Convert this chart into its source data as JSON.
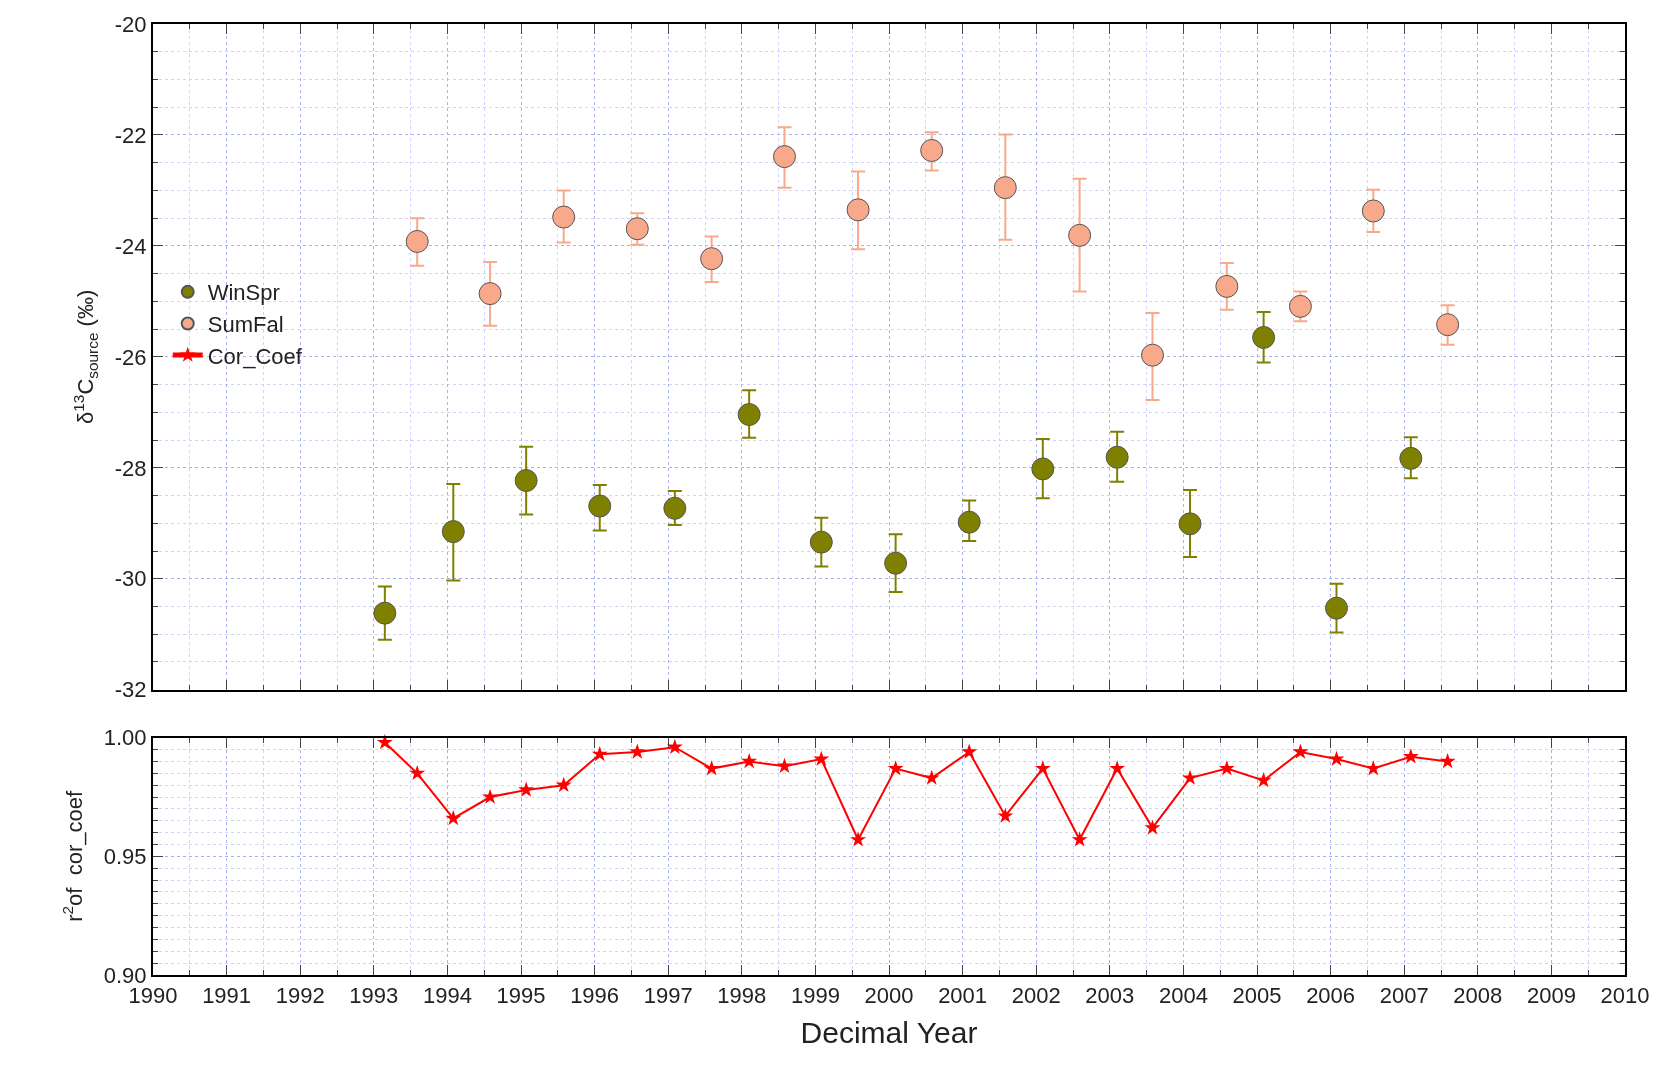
{
  "chart_data": [
    {
      "type": "scatter",
      "ylabel": "δ$^{13}$C$_{source}$ (‰)",
      "xlim": [
        1990,
        2010
      ],
      "ylim": [
        -32,
        -20
      ],
      "yticks": [
        -32,
        -30,
        -28,
        -26,
        -24,
        -22,
        -20
      ],
      "xticks": [
        1990,
        1991,
        1992,
        1993,
        1994,
        1995,
        1996,
        1997,
        1998,
        1999,
        2000,
        2001,
        2002,
        2003,
        2004,
        2005,
        2006,
        2007,
        2008,
        2009,
        2010
      ],
      "tick_labels": "y",
      "grid": true,
      "legend": "left",
      "marker": "circle",
      "series": [
        {
          "name": "WinSpr",
          "color": "#808000",
          "x": [
            1993.15,
            1994.08,
            1995.07,
            1996.07,
            1997.09,
            1998.1,
            1999.08,
            2000.09,
            2001.09,
            2002.09,
            2003.1,
            2004.09,
            2005.09,
            2006.08,
            2007.09
          ],
          "values": [
            -30.62,
            -29.15,
            -28.23,
            -28.69,
            -28.73,
            -27.04,
            -29.34,
            -29.72,
            -28.98,
            -28.02,
            -27.81,
            -29.01,
            -25.65,
            -30.53,
            -27.83
          ],
          "errors": [
            [
              -31.1,
              -30.14
            ],
            [
              -30.03,
              -28.29
            ],
            [
              -28.84,
              -27.62
            ],
            [
              -29.13,
              -28.31
            ],
            [
              -29.03,
              -28.42
            ],
            [
              -27.46,
              -26.6
            ],
            [
              -29.78,
              -28.9
            ],
            [
              -30.24,
              -29.2
            ],
            [
              -29.32,
              -28.59
            ],
            [
              -28.55,
              -27.48
            ],
            [
              -28.25,
              -27.35
            ],
            [
              -29.61,
              -28.4
            ],
            [
              -26.1,
              -25.19
            ],
            [
              -30.97,
              -30.09
            ],
            [
              -28.19,
              -27.45
            ]
          ]
        },
        {
          "name": "SumFal",
          "color": "#f9a98b",
          "x": [
            1993.59,
            1994.58,
            1995.58,
            1996.58,
            1997.59,
            1998.58,
            1999.58,
            2000.58,
            2001.58,
            2002.59,
            2003.58,
            2004.59,
            2005.59,
            2006.58,
            2007.59
          ],
          "values": [
            -23.92,
            -24.86,
            -23.48,
            -23.69,
            -24.23,
            -22.39,
            -23.35,
            -22.28,
            -22.95,
            -23.81,
            -25.97,
            -24.73,
            -25.09,
            -23.37,
            -25.42
          ],
          "errors": [
            [
              -24.36,
              -23.5
            ],
            [
              -25.44,
              -24.29
            ],
            [
              -23.94,
              -23.0
            ],
            [
              -23.98,
              -23.41
            ],
            [
              -24.65,
              -23.83
            ],
            [
              -22.95,
              -21.86
            ],
            [
              -24.06,
              -22.66
            ],
            [
              -22.64,
              -21.95
            ],
            [
              -23.89,
              -21.99
            ],
            [
              -24.82,
              -22.79
            ],
            [
              -26.78,
              -25.21
            ],
            [
              -25.15,
              -24.31
            ],
            [
              -25.36,
              -24.82
            ],
            [
              -23.75,
              -22.99
            ],
            [
              -25.78,
              -25.07
            ]
          ]
        }
      ]
    },
    {
      "type": "line",
      "xlabel": "Decimal Year",
      "ylabel": "r$^{2}$of  cor_coef",
      "xlim": [
        1990,
        2010
      ],
      "ylim": [
        0.9,
        1.0
      ],
      "yticks": [
        {
          "value": 0.9,
          "label": "0.90"
        },
        {
          "value": 0.95,
          "label": "0.95"
        },
        {
          "value": 1.0,
          "label": "1.00"
        }
      ],
      "xticks": [
        1990,
        1991,
        1992,
        1993,
        1994,
        1995,
        1996,
        1997,
        1998,
        1999,
        2000,
        2001,
        2002,
        2003,
        2004,
        2005,
        2006,
        2007,
        2008,
        2009,
        2010
      ],
      "grid": true,
      "legend": "left",
      "marker": "star",
      "line_style": "solid",
      "series": [
        {
          "name": "Cor_Coef",
          "color": "#ff0000",
          "x": [
            1993.15,
            1993.59,
            1994.08,
            1994.58,
            1995.07,
            1995.58,
            1996.07,
            1996.58,
            1997.09,
            1997.59,
            1998.1,
            1998.58,
            1999.08,
            1999.58,
            2000.09,
            2000.58,
            2001.09,
            2001.58,
            2002.09,
            2002.59,
            2003.1,
            2003.58,
            2004.09,
            2004.59,
            2005.09,
            2005.59,
            2006.08,
            2006.58,
            2007.09,
            2007.59
          ],
          "values": [
            0.998,
            0.985,
            0.966,
            0.975,
            0.978,
            0.98,
            0.993,
            0.994,
            0.996,
            0.987,
            0.99,
            0.988,
            0.991,
            0.957,
            0.987,
            0.983,
            0.994,
            0.967,
            0.987,
            0.957,
            0.987,
            0.962,
            0.983,
            0.987,
            0.982,
            0.994,
            0.991,
            0.987,
            0.992,
            0.99
          ]
        }
      ]
    }
  ]
}
